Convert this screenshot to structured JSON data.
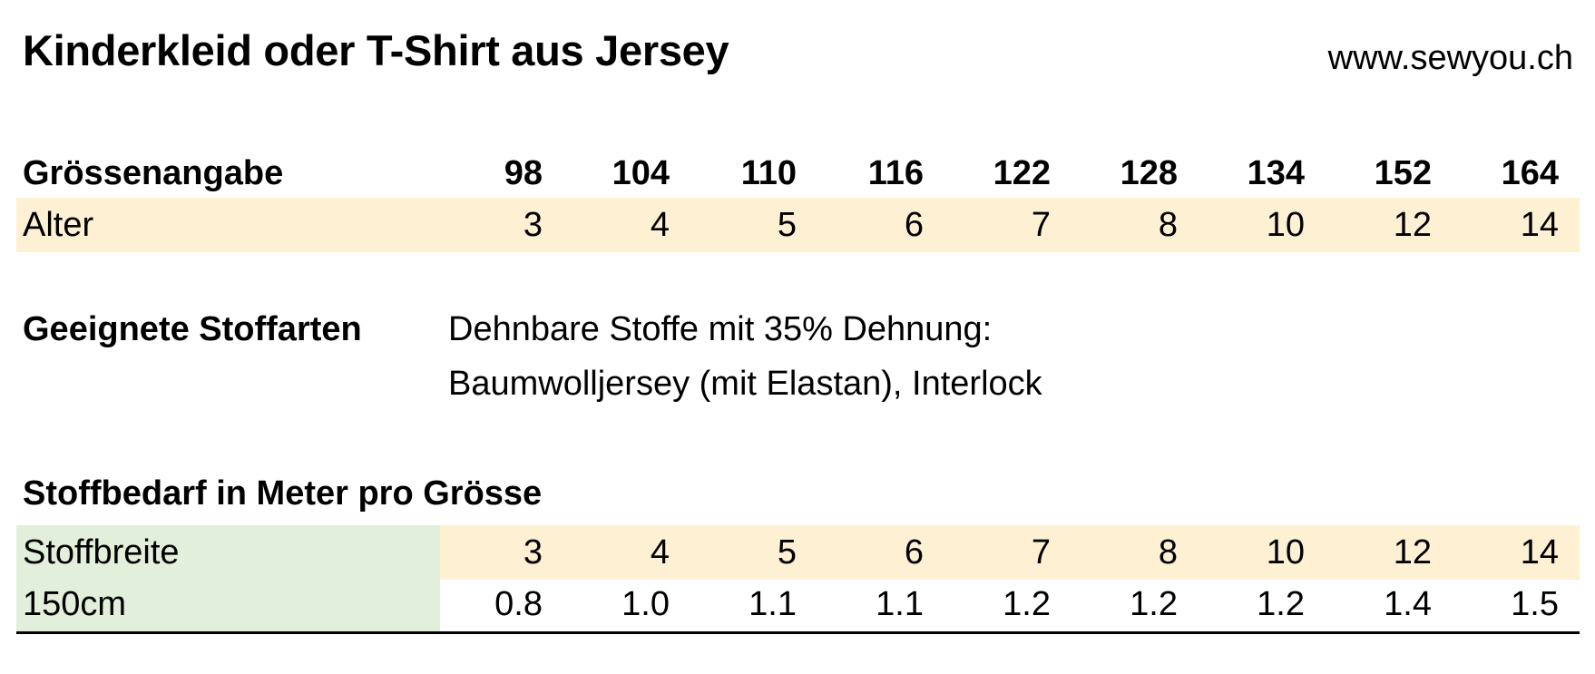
{
  "header": {
    "title": "Kinderkleid oder T-Shirt aus Jersey",
    "website": "www.sewyou.ch"
  },
  "sizes": {
    "label": "Grössenangabe",
    "values": [
      "98",
      "104",
      "110",
      "116",
      "122",
      "128",
      "134",
      "152",
      "164"
    ]
  },
  "age": {
    "label": "Alter",
    "values": [
      "3",
      "4",
      "5",
      "6",
      "7",
      "8",
      "10",
      "12",
      "14"
    ]
  },
  "fabrics": {
    "label": "Geeignete Stoffarten",
    "line1": "Dehnbare Stoffe mit 35% Dehnung:",
    "line2": "Baumwolljersey (mit Elastan), Interlock"
  },
  "fabric_need": {
    "heading": "Stoffbedarf in Meter pro Grösse",
    "width_label": "Stoffbreite",
    "width_values": [
      "3",
      "4",
      "5",
      "6",
      "7",
      "8",
      "10",
      "12",
      "14"
    ],
    "row_label": "150cm",
    "row_values": [
      "0.8",
      "1.0",
      "1.1",
      "1.1",
      "1.2",
      "1.2",
      "1.2",
      "1.4",
      "1.5"
    ]
  },
  "colors": {
    "yellow_fill": "#fdf0d3",
    "green_fill": "#e2efda"
  }
}
